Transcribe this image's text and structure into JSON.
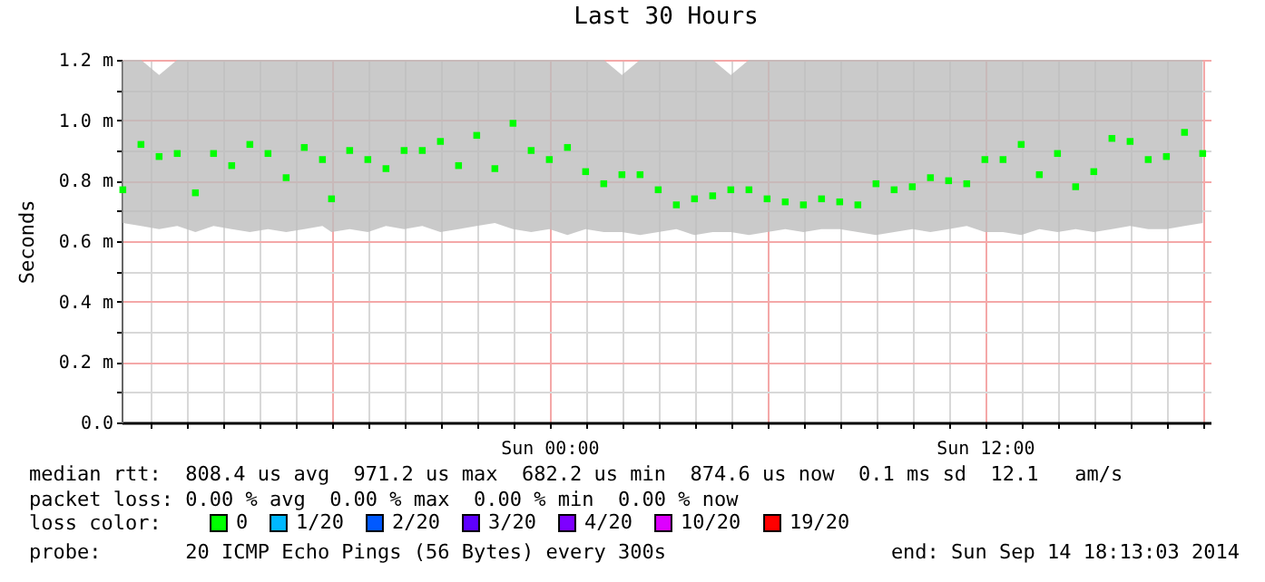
{
  "chart_data": {
    "type": "scatter",
    "title": "Last 30 Hours",
    "ylabel": "Seconds",
    "legend_title": "loss color:",
    "legend": "bottom",
    "marker": "square",
    "grid": true,
    "x": [
      "2014-09-13T12:15",
      "2014-09-13T12:45",
      "2014-09-13T13:15",
      "2014-09-13T13:45",
      "2014-09-13T14:15",
      "2014-09-13T14:45",
      "2014-09-13T15:15",
      "2014-09-13T15:45",
      "2014-09-13T16:15",
      "2014-09-13T16:45",
      "2014-09-13T17:15",
      "2014-09-13T17:45",
      "2014-09-13T18:00",
      "2014-09-13T18:30",
      "2014-09-13T19:00",
      "2014-09-13T19:30",
      "2014-09-13T20:00",
      "2014-09-13T20:30",
      "2014-09-13T21:00",
      "2014-09-13T21:30",
      "2014-09-13T22:00",
      "2014-09-13T22:30",
      "2014-09-13T23:00",
      "2014-09-13T23:30",
      "2014-09-14T00:00",
      "2014-09-14T00:30",
      "2014-09-14T01:00",
      "2014-09-14T01:30",
      "2014-09-14T02:00",
      "2014-09-14T02:30",
      "2014-09-14T03:00",
      "2014-09-14T03:30",
      "2014-09-14T04:00",
      "2014-09-14T04:30",
      "2014-09-14T05:00",
      "2014-09-14T05:30",
      "2014-09-14T06:00",
      "2014-09-14T06:30",
      "2014-09-14T07:00",
      "2014-09-14T07:30",
      "2014-09-14T08:00",
      "2014-09-14T08:30",
      "2014-09-14T09:00",
      "2014-09-14T09:30",
      "2014-09-14T10:00",
      "2014-09-14T10:30",
      "2014-09-14T11:00",
      "2014-09-14T11:30",
      "2014-09-14T12:00",
      "2014-09-14T12:30",
      "2014-09-14T13:00",
      "2014-09-14T13:30",
      "2014-09-14T14:00",
      "2014-09-14T14:30",
      "2014-09-14T15:00",
      "2014-09-14T15:30",
      "2014-09-14T16:00",
      "2014-09-14T16:30",
      "2014-09-14T17:00",
      "2014-09-14T17:30",
      "2014-09-14T18:00"
    ],
    "xlim": [
      "2014-09-13T12:13",
      "2014-09-14T18:13"
    ],
    "xticks": [
      {
        "value": "2014-09-13T13:00",
        "label": null
      },
      {
        "value": "2014-09-13T14:00",
        "label": null
      },
      {
        "value": "2014-09-13T15:00",
        "label": null
      },
      {
        "value": "2014-09-13T16:00",
        "label": null
      },
      {
        "value": "2014-09-13T17:00",
        "label": null
      },
      {
        "value": "2014-09-13T18:00",
        "label": null
      },
      {
        "value": "2014-09-13T19:00",
        "label": null
      },
      {
        "value": "2014-09-13T20:00",
        "label": null
      },
      {
        "value": "2014-09-13T21:00",
        "label": null
      },
      {
        "value": "2014-09-13T22:00",
        "label": null
      },
      {
        "value": "2014-09-13T23:00",
        "label": null
      },
      {
        "value": "2014-09-14T00:00",
        "label": "Sun 00:00"
      },
      {
        "value": "2014-09-14T01:00",
        "label": null
      },
      {
        "value": "2014-09-14T02:00",
        "label": null
      },
      {
        "value": "2014-09-14T03:00",
        "label": null
      },
      {
        "value": "2014-09-14T04:00",
        "label": null
      },
      {
        "value": "2014-09-14T05:00",
        "label": null
      },
      {
        "value": "2014-09-14T06:00",
        "label": null
      },
      {
        "value": "2014-09-14T07:00",
        "label": null
      },
      {
        "value": "2014-09-14T08:00",
        "label": null
      },
      {
        "value": "2014-09-14T09:00",
        "label": null
      },
      {
        "value": "2014-09-14T10:00",
        "label": null
      },
      {
        "value": "2014-09-14T11:00",
        "label": null
      },
      {
        "value": "2014-09-14T12:00",
        "label": "Sun 12:00"
      },
      {
        "value": "2014-09-14T13:00",
        "label": null
      },
      {
        "value": "2014-09-14T14:00",
        "label": null
      },
      {
        "value": "2014-09-14T15:00",
        "label": null
      },
      {
        "value": "2014-09-14T16:00",
        "label": null
      },
      {
        "value": "2014-09-14T17:00",
        "label": null
      },
      {
        "value": "2014-09-14T18:00",
        "label": null
      }
    ],
    "ylim": [
      0,
      1.2
    ],
    "yticks": [
      {
        "value": 0,
        "label": "0.0"
      },
      {
        "value": 0.1,
        "label": null
      },
      {
        "value": 0.2,
        "label": "0.2 m"
      },
      {
        "value": 0.3,
        "label": null
      },
      {
        "value": 0.4,
        "label": "0.4 m"
      },
      {
        "value": 0.5,
        "label": null
      },
      {
        "value": 0.6,
        "label": "0.6 m"
      },
      {
        "value": 0.7,
        "label": null
      },
      {
        "value": 0.8,
        "label": "0.8 m"
      },
      {
        "value": 0.9,
        "label": null
      },
      {
        "value": 1.0,
        "label": "1.0 m"
      },
      {
        "value": 1.1,
        "label": null
      },
      {
        "value": 1.2,
        "label": "1.2 m"
      }
    ],
    "series": [
      {
        "name": "0",
        "color": "#00ff00",
        "values": [
          0.77,
          0.92,
          0.88,
          0.89,
          0.76,
          0.89,
          0.85,
          0.92,
          0.89,
          0.81,
          0.91,
          0.87,
          0.74,
          0.9,
          0.87,
          0.84,
          0.9,
          0.9,
          0.93,
          0.85,
          0.95,
          0.84,
          0.99,
          0.9,
          0.87,
          0.91,
          0.83,
          0.79,
          0.82,
          0.82,
          0.77,
          0.72,
          0.74,
          0.75,
          0.77,
          0.77,
          0.74,
          0.73,
          0.72,
          0.74,
          0.73,
          0.72,
          0.79,
          0.77,
          0.78,
          0.81,
          0.8,
          0.79,
          0.87,
          0.87,
          0.92,
          0.82,
          0.89,
          0.78,
          0.83,
          0.94,
          0.93,
          0.87,
          0.88,
          0.96,
          0.89
        ],
        "lower": [
          0.66,
          0.65,
          0.64,
          0.65,
          0.63,
          0.65,
          0.64,
          0.63,
          0.64,
          0.63,
          0.64,
          0.65,
          0.63,
          0.64,
          0.63,
          0.65,
          0.64,
          0.65,
          0.63,
          0.64,
          0.65,
          0.66,
          0.64,
          0.63,
          0.64,
          0.62,
          0.64,
          0.63,
          0.63,
          0.62,
          0.63,
          0.64,
          0.62,
          0.63,
          0.63,
          0.62,
          0.63,
          0.64,
          0.63,
          0.64,
          0.64,
          0.63,
          0.62,
          0.63,
          0.64,
          0.63,
          0.64,
          0.65,
          0.63,
          0.63,
          0.62,
          0.64,
          0.63,
          0.64,
          0.63,
          0.64,
          0.65,
          0.64,
          0.64,
          0.65,
          0.66
        ],
        "upper": [
          1.2,
          1.2,
          1.15,
          1.2,
          1.2,
          1.2,
          1.2,
          1.2,
          1.2,
          1.2,
          1.2,
          1.2,
          1.2,
          1.2,
          1.2,
          1.2,
          1.2,
          1.2,
          1.2,
          1.2,
          1.2,
          1.2,
          1.2,
          1.2,
          1.2,
          1.2,
          1.2,
          1.2,
          1.15,
          1.2,
          1.2,
          1.2,
          1.2,
          1.2,
          1.15,
          1.2,
          1.2,
          1.2,
          1.2,
          1.2,
          1.2,
          1.2,
          1.2,
          1.2,
          1.2,
          1.2,
          1.2,
          1.2,
          1.2,
          1.2,
          1.2,
          1.2,
          1.2,
          1.2,
          1.2,
          1.2,
          1.2,
          1.2,
          1.2,
          1.2,
          1.2
        ]
      },
      {
        "name": "1/20",
        "color": "#00b8ff",
        "values": [
          null,
          null,
          null,
          null,
          null,
          null,
          null,
          null,
          null,
          null,
          null,
          null,
          null,
          null,
          null,
          null,
          null,
          null,
          null,
          null,
          null,
          null,
          null,
          null,
          null,
          null,
          null,
          null,
          null,
          null,
          null,
          null,
          null,
          null,
          null,
          null,
          null,
          null,
          null,
          null,
          null,
          null,
          null,
          null,
          null,
          null,
          null,
          null,
          null,
          null,
          null,
          null,
          null,
          null,
          null,
          null,
          null,
          null,
          null,
          null,
          null
        ]
      },
      {
        "name": "2/20",
        "color": "#0059ff",
        "values": [
          null,
          null,
          null,
          null,
          null,
          null,
          null,
          null,
          null,
          null,
          null,
          null,
          null,
          null,
          null,
          null,
          null,
          null,
          null,
          null,
          null,
          null,
          null,
          null,
          null,
          null,
          null,
          null,
          null,
          null,
          null,
          null,
          null,
          null,
          null,
          null,
          null,
          null,
          null,
          null,
          null,
          null,
          null,
          null,
          null,
          null,
          null,
          null,
          null,
          null,
          null,
          null,
          null,
          null,
          null,
          null,
          null,
          null,
          null,
          null,
          null
        ]
      },
      {
        "name": "3/20",
        "color": "#5e00ff",
        "values": [
          null,
          null,
          null,
          null,
          null,
          null,
          null,
          null,
          null,
          null,
          null,
          null,
          null,
          null,
          null,
          null,
          null,
          null,
          null,
          null,
          null,
          null,
          null,
          null,
          null,
          null,
          null,
          null,
          null,
          null,
          null,
          null,
          null,
          null,
          null,
          null,
          null,
          null,
          null,
          null,
          null,
          null,
          null,
          null,
          null,
          null,
          null,
          null,
          null,
          null,
          null,
          null,
          null,
          null,
          null,
          null,
          null,
          null,
          null,
          null,
          null
        ]
      },
      {
        "name": "4/20",
        "color": "#7e00ff",
        "values": [
          null,
          null,
          null,
          null,
          null,
          null,
          null,
          null,
          null,
          null,
          null,
          null,
          null,
          null,
          null,
          null,
          null,
          null,
          null,
          null,
          null,
          null,
          null,
          null,
          null,
          null,
          null,
          null,
          null,
          null,
          null,
          null,
          null,
          null,
          null,
          null,
          null,
          null,
          null,
          null,
          null,
          null,
          null,
          null,
          null,
          null,
          null,
          null,
          null,
          null,
          null,
          null,
          null,
          null,
          null,
          null,
          null,
          null,
          null,
          null,
          null
        ]
      },
      {
        "name": "10/20",
        "color": "#dd00ff",
        "values": [
          null,
          null,
          null,
          null,
          null,
          null,
          null,
          null,
          null,
          null,
          null,
          null,
          null,
          null,
          null,
          null,
          null,
          null,
          null,
          null,
          null,
          null,
          null,
          null,
          null,
          null,
          null,
          null,
          null,
          null,
          null,
          null,
          null,
          null,
          null,
          null,
          null,
          null,
          null,
          null,
          null,
          null,
          null,
          null,
          null,
          null,
          null,
          null,
          null,
          null,
          null,
          null,
          null,
          null,
          null,
          null,
          null,
          null,
          null,
          null,
          null
        ]
      },
      {
        "name": "19/20",
        "color": "#ff0000",
        "values": [
          null,
          null,
          null,
          null,
          null,
          null,
          null,
          null,
          null,
          null,
          null,
          null,
          null,
          null,
          null,
          null,
          null,
          null,
          null,
          null,
          null,
          null,
          null,
          null,
          null,
          null,
          null,
          null,
          null,
          null,
          null,
          null,
          null,
          null,
          null,
          null,
          null,
          null,
          null,
          null,
          null,
          null,
          null,
          null,
          null,
          null,
          null,
          null,
          null,
          null,
          null,
          null,
          null,
          null,
          null,
          null,
          null,
          null,
          null,
          null,
          null
        ]
      }
    ],
    "annotations": [
      "median rtt:  808.4 us avg  971.2 us max  682.2 us min  874.6 us now  0.1 ms sd  12.1   am/s",
      "packet loss: 0.00 % avg  0.00 % max  0.00 % min  0.00 % now",
      "probe:       20 ICMP Echo Pings (56 Bytes) every 300s",
      "end: Sun Sep 14 18:13:03 2014"
    ]
  }
}
